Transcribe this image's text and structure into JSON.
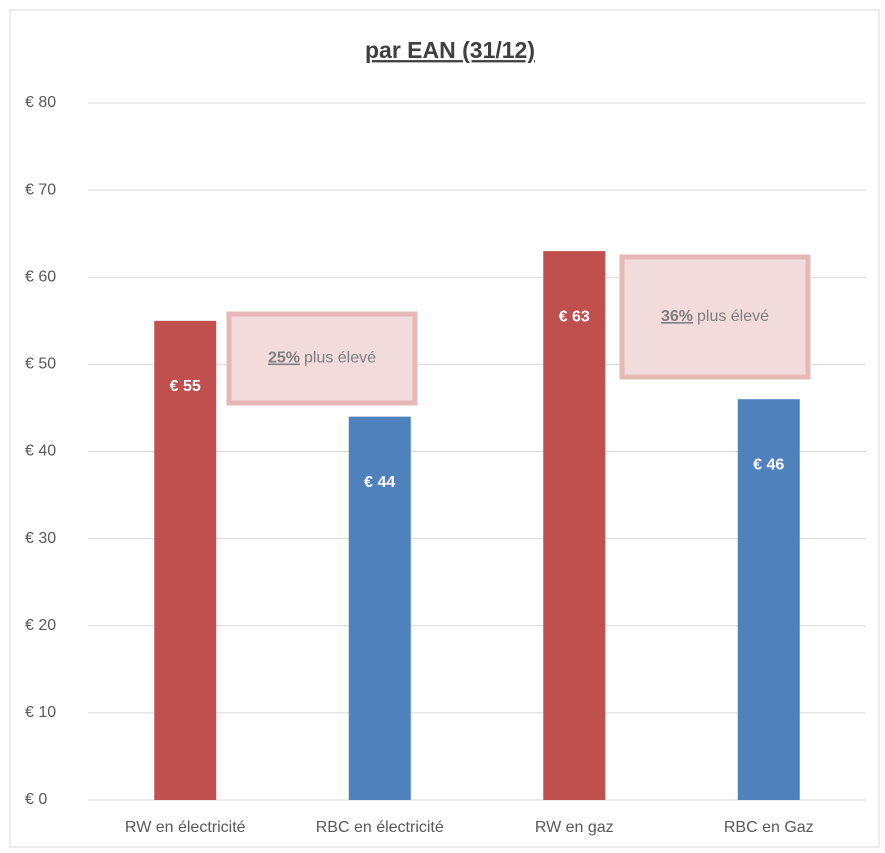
{
  "chart_data": {
    "type": "bar",
    "title": "par EAN (31/12)",
    "categories": [
      "RW en électricité",
      "RBC en électricité",
      "RW en gaz",
      "RBC en Gaz"
    ],
    "values": [
      55,
      44,
      63,
      46
    ],
    "value_labels": [
      "€ 55",
      "€ 44",
      "€ 63",
      "€ 46"
    ],
    "colors": [
      "#c0504d",
      "#4f81bd",
      "#c0504d",
      "#4f81bd"
    ],
    "ylim": [
      0,
      80
    ],
    "yticks": [
      {
        "value": 0,
        "label": "€ 0"
      },
      {
        "value": 10,
        "label": "€ 10"
      },
      {
        "value": 20,
        "label": "€ 20"
      },
      {
        "value": 30,
        "label": "€ 30"
      },
      {
        "value": 40,
        "label": "€ 40"
      },
      {
        "value": 50,
        "label": "€ 50"
      },
      {
        "value": 60,
        "label": "€ 60"
      },
      {
        "value": 70,
        "label": "€ 70"
      },
      {
        "value": 80,
        "label": "€ 80"
      }
    ],
    "grid": true,
    "annotations": [
      {
        "emphasis": "25%",
        "text": "plus élevé"
      },
      {
        "emphasis": "36%",
        "text": "plus élevé"
      }
    ]
  }
}
